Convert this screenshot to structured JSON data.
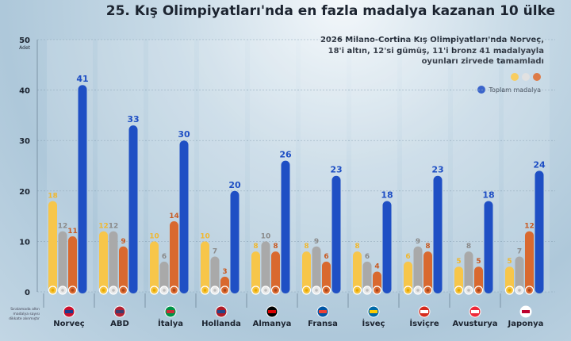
{
  "title": "25. Kış Olimpiyatları'nda en fazla madalya kazanan 10 ülke",
  "subtitle": [
    "2026 Milano-Cortina Kış Olimpiyatları'nda Norveç,",
    "18'i altın, 12'si gümüş, 11'i bronz 41 madalyayla",
    "oyunları zirvede tamamladı"
  ],
  "note": "Sıralamada altın madalya sayısı dikkate alınmıştır",
  "colors": {
    "gold": "#f7c64a",
    "silver": "#a9a9a9",
    "bronze": "#d9692f",
    "total": "#1f4fc4"
  },
  "chart_data": {
    "type": "bar",
    "ylabel": "Adet",
    "ylim": [
      0,
      50
    ],
    "yticks": [
      0,
      10,
      20,
      30,
      40,
      50
    ],
    "grid": true,
    "legend_position": "top-right",
    "legend": {
      "total": "Toplam madalya"
    },
    "categories": [
      "Norveç",
      "ABD",
      "İtalya",
      "Hollanda",
      "Almanya",
      "Fransa",
      "İsveç",
      "İsviçre",
      "Avusturya",
      "Japonya"
    ],
    "flags": [
      "norway-flag",
      "usa-flag",
      "italy-flag",
      "netherlands-flag",
      "germany-flag",
      "france-flag",
      "sweden-flag",
      "switzerland-flag",
      "austria-flag",
      "japan-flag"
    ],
    "series": [
      {
        "key": "gold",
        "values": [
          18,
          12,
          10,
          10,
          8,
          8,
          8,
          6,
          5,
          5
        ]
      },
      {
        "key": "silver",
        "values": [
          12,
          12,
          6,
          7,
          10,
          9,
          6,
          9,
          8,
          7
        ]
      },
      {
        "key": "bronze",
        "values": [
          11,
          9,
          14,
          3,
          8,
          6,
          4,
          8,
          5,
          12
        ]
      },
      {
        "key": "total",
        "name": "Toplam madalya",
        "values": [
          41,
          33,
          30,
          20,
          26,
          23,
          18,
          23,
          18,
          24
        ]
      }
    ]
  }
}
